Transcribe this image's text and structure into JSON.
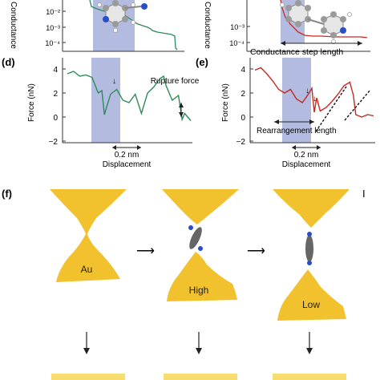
{
  "panels": {
    "top_left": {
      "y_tick_labels": [
        "10⁻²",
        "10⁻³",
        "10⁻⁴"
      ],
      "ylabel": "Conductance"
    },
    "top_right": {
      "y_tick_labels": [
        "10⁻³",
        "10⁻⁴"
      ],
      "ylabel": "Conductance",
      "annotation": "Conductance step length"
    },
    "d": {
      "label": "(d)",
      "ylabel": "Force (nN)",
      "y_tick_labels": [
        "4",
        "2",
        "0",
        "−2"
      ],
      "annotation": "Rupture force",
      "scale_bar": "0.2 nm",
      "xlabel": "Displacement"
    },
    "e": {
      "label": "(e)",
      "ylabel": "Force (nN)",
      "y_tick_labels": [
        "4",
        "2",
        "0",
        "−2"
      ],
      "annotation": "Rearrangement length",
      "scale_bar": "0.2 nm",
      "xlabel": "Displacement"
    },
    "f": {
      "label": "(f)",
      "stage_labels": [
        "Au",
        "High",
        "Low"
      ],
      "corner_mark": "I"
    }
  },
  "colors": {
    "green_trace": "#2e8b57",
    "red_trace": "#c8281e",
    "shade": "#9aa5d6",
    "gold": "#f2c12e",
    "gold_light": "#f7dc6f"
  },
  "chart_data": [
    {
      "type": "line",
      "panel": "d",
      "ylabel": "Force (nN)",
      "xlabel": "Displacement",
      "ylim": [
        -2,
        4
      ],
      "x": [
        0,
        0.05,
        0.1,
        0.15,
        0.2,
        0.25,
        0.28,
        0.3,
        0.35,
        0.4,
        0.45,
        0.5,
        0.55,
        0.6,
        0.65,
        0.7,
        0.75,
        0.78,
        0.8,
        0.85,
        0.9,
        0.93,
        0.95,
        1.0
      ],
      "series": [
        {
          "values": [
            3.6,
            3.8,
            3.4,
            3.5,
            3.3,
            2.0,
            2.2,
            0.2,
            1.9,
            2.3,
            1.4,
            1.2,
            1.9,
            0.3,
            2.0,
            2.5,
            3.2,
            3.4,
            2.6,
            1.4,
            1.8,
            -0.2,
            0.3,
            -0.3
          ]
        }
      ]
    },
    {
      "type": "line",
      "panel": "e",
      "ylabel": "Force (nN)",
      "xlabel": "Displacement",
      "ylim": [
        -2,
        4
      ],
      "x": [
        0,
        0.05,
        0.1,
        0.15,
        0.2,
        0.25,
        0.3,
        0.35,
        0.4,
        0.45,
        0.48,
        0.5,
        0.52,
        0.55,
        0.6,
        0.65,
        0.7,
        0.75,
        0.8,
        0.83,
        0.85,
        0.9,
        0.95,
        1.0
      ],
      "series": [
        {
          "values": [
            3.9,
            4.1,
            3.6,
            3.0,
            2.3,
            2.0,
            2.3,
            1.5,
            1.2,
            1.9,
            2.4,
            0.4,
            1.6,
            0.5,
            0.8,
            1.3,
            1.9,
            2.6,
            2.9,
            1.8,
            0.2,
            0.0,
            0.2,
            0.1
          ]
        }
      ]
    }
  ]
}
